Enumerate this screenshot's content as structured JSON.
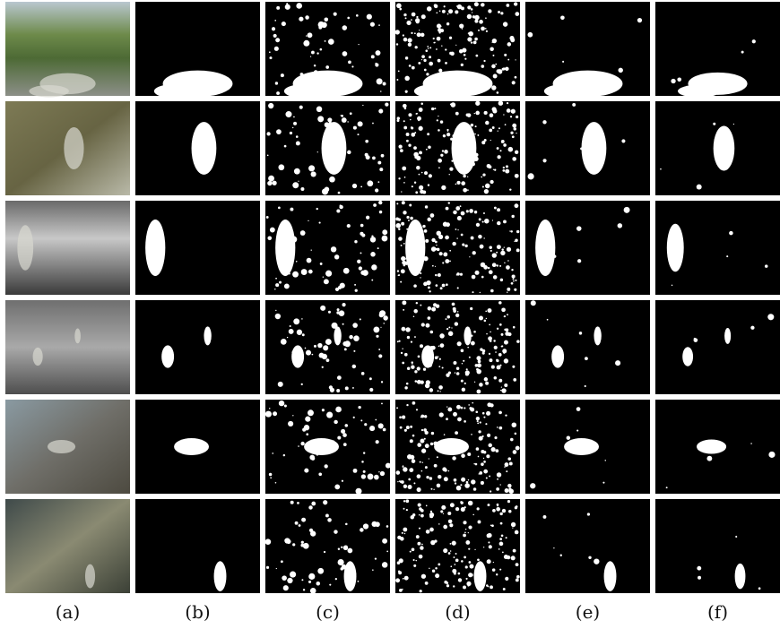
{
  "figure": {
    "column_labels": [
      "(a)",
      "(b)",
      "(c)",
      "(d)",
      "(e)",
      "(f)"
    ]
  }
}
